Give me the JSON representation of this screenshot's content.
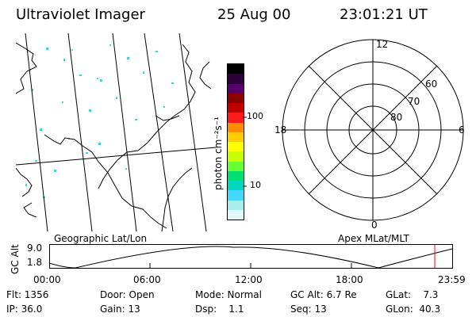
{
  "header": {
    "instrument": "Ultraviolet Imager",
    "date": "25 Aug 00",
    "time": "23:01:21 UT"
  },
  "map_panel": {
    "label": "Geographic Lat/Lon"
  },
  "colorbar": {
    "unit_label": "photon cm⁻²s⁻¹",
    "tick_100": "100",
    "tick_10": "10",
    "colors": [
      "#000000",
      "#2b0038",
      "#55006b",
      "#8c0000",
      "#c00000",
      "#ff1a1a",
      "#ff8c00",
      "#ffcc00",
      "#ffff00",
      "#c8ff00",
      "#66ff33",
      "#00e070",
      "#00d8c0",
      "#40d8ff",
      "#a8eef0",
      "#e0f8f8"
    ]
  },
  "polar_plot": {
    "label": "Apex MLat/MLT",
    "mlt_12": "12",
    "mlt_18": "18",
    "mlt_6": "6",
    "mlt_0": "0",
    "lat_60": "60",
    "lat_70": "70",
    "lat_80": "80"
  },
  "altitude_plot": {
    "ylabel": "GC Alt",
    "y_top": "9.0",
    "y_bottom": "1.8",
    "x_ticks": [
      "00:00",
      "06:00",
      "12:00",
      "18:00",
      "23:59"
    ],
    "current_marker_color": "#ff0000"
  },
  "info": {
    "flt": "Flt: 1356",
    "ip": "IP: 36.0",
    "door": "Door: Open",
    "gain": "Gain: 13",
    "mode": "Mode: Normal",
    "dsp": "Dsp:    1.1",
    "gc_alt": "GC Alt: 6.7 Re",
    "seq": "Seq: 13",
    "glat": "GLat:    7.3",
    "glon": "GLon:  40.3"
  }
}
